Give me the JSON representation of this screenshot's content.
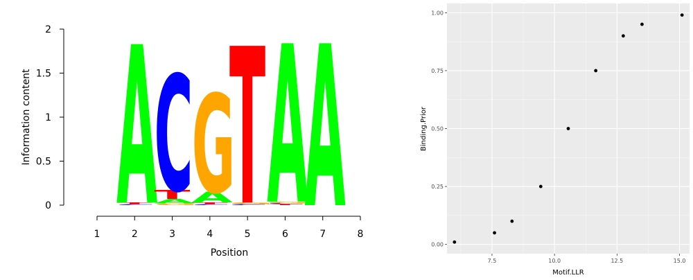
{
  "chart_data": [
    {
      "type": "sequence-logo",
      "xlabel": "Position",
      "ylabel": "Information content",
      "xticks": [
        "1",
        "2",
        "3",
        "4",
        "5",
        "6",
        "7",
        "8"
      ],
      "yticks": [
        "0",
        "0.5",
        "1",
        "1.5",
        "2"
      ],
      "ylim": [
        0,
        2
      ],
      "xlim": [
        1,
        8
      ],
      "colors": {
        "A": "#00ff00",
        "C": "#0000ff",
        "G": "#ffa500",
        "T": "#ff0000"
      },
      "positions": [
        {
          "x": 2,
          "letters": [
            {
              "base": "A",
              "bits": 1.8
            },
            {
              "base": "T",
              "bits": 0.02
            },
            {
              "base": "C",
              "bits": 0.01
            }
          ]
        },
        {
          "x": 3,
          "letters": [
            {
              "base": "C",
              "bits": 1.32
            },
            {
              "base": "T",
              "bits": 0.1
            },
            {
              "base": "A",
              "bits": 0.05
            },
            {
              "base": "G",
              "bits": 0.02
            }
          ]
        },
        {
          "x": 4,
          "letters": [
            {
              "base": "G",
              "bits": 1.12
            },
            {
              "base": "A",
              "bits": 0.12
            },
            {
              "base": "T",
              "bits": 0.02
            },
            {
              "base": "C",
              "bits": 0.01
            }
          ]
        },
        {
          "x": 5,
          "letters": [
            {
              "base": "T",
              "bits": 1.78
            },
            {
              "base": "G",
              "bits": 0.02
            },
            {
              "base": "C",
              "bits": 0.01
            }
          ]
        },
        {
          "x": 6,
          "letters": [
            {
              "base": "A",
              "bits": 1.8
            },
            {
              "base": "G",
              "bits": 0.02
            },
            {
              "base": "T",
              "bits": 0.01
            },
            {
              "base": "C",
              "bits": 0.01
            }
          ]
        },
        {
          "x": 7,
          "letters": [
            {
              "base": "A",
              "bits": 1.84
            }
          ]
        }
      ]
    },
    {
      "type": "scatter",
      "xlabel": "Motif.LLR",
      "ylabel": "Binding.Prior",
      "xlim": [
        5.7,
        15.4
      ],
      "ylim": [
        -0.04,
        1.04
      ],
      "xticks": [
        "7.5",
        "10.0",
        "12.5",
        "15.0"
      ],
      "yticks": [
        "0.00",
        "0.25",
        "0.50",
        "0.75",
        "1.00"
      ],
      "grid": true,
      "background": "#ebebeb",
      "points": [
        {
          "x": 6.0,
          "y": 0.01
        },
        {
          "x": 7.6,
          "y": 0.05
        },
        {
          "x": 8.3,
          "y": 0.1
        },
        {
          "x": 9.45,
          "y": 0.25
        },
        {
          "x": 10.55,
          "y": 0.5
        },
        {
          "x": 11.65,
          "y": 0.75
        },
        {
          "x": 12.75,
          "y": 0.9
        },
        {
          "x": 13.5,
          "y": 0.95
        },
        {
          "x": 15.1,
          "y": 0.99
        }
      ]
    }
  ]
}
